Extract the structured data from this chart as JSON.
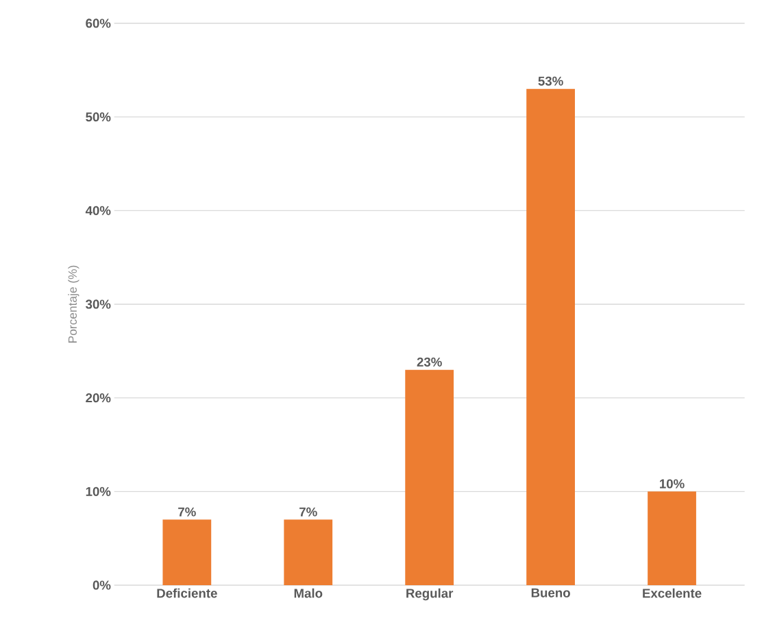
{
  "chart_data": {
    "type": "bar",
    "ylabel": "Porcentaje (%)",
    "categories": [
      "Deficiente",
      "Malo",
      "Regular",
      "Bueno",
      "Excelente"
    ],
    "values": [
      7,
      7,
      23,
      53,
      10
    ],
    "value_labels": [
      "7%",
      "7%",
      "23%",
      "53%",
      "10%"
    ],
    "color": "#ed7d31",
    "ylim": [
      0,
      60
    ],
    "yticks": [
      {
        "value": 0,
        "label": "0%"
      },
      {
        "value": 10,
        "label": "10%"
      },
      {
        "value": 20,
        "label": "20%"
      },
      {
        "value": 30,
        "label": "30%"
      },
      {
        "value": 40,
        "label": "40%"
      },
      {
        "value": 50,
        "label": "50%"
      },
      {
        "value": 60,
        "label": "60%"
      }
    ],
    "grid": "y"
  }
}
